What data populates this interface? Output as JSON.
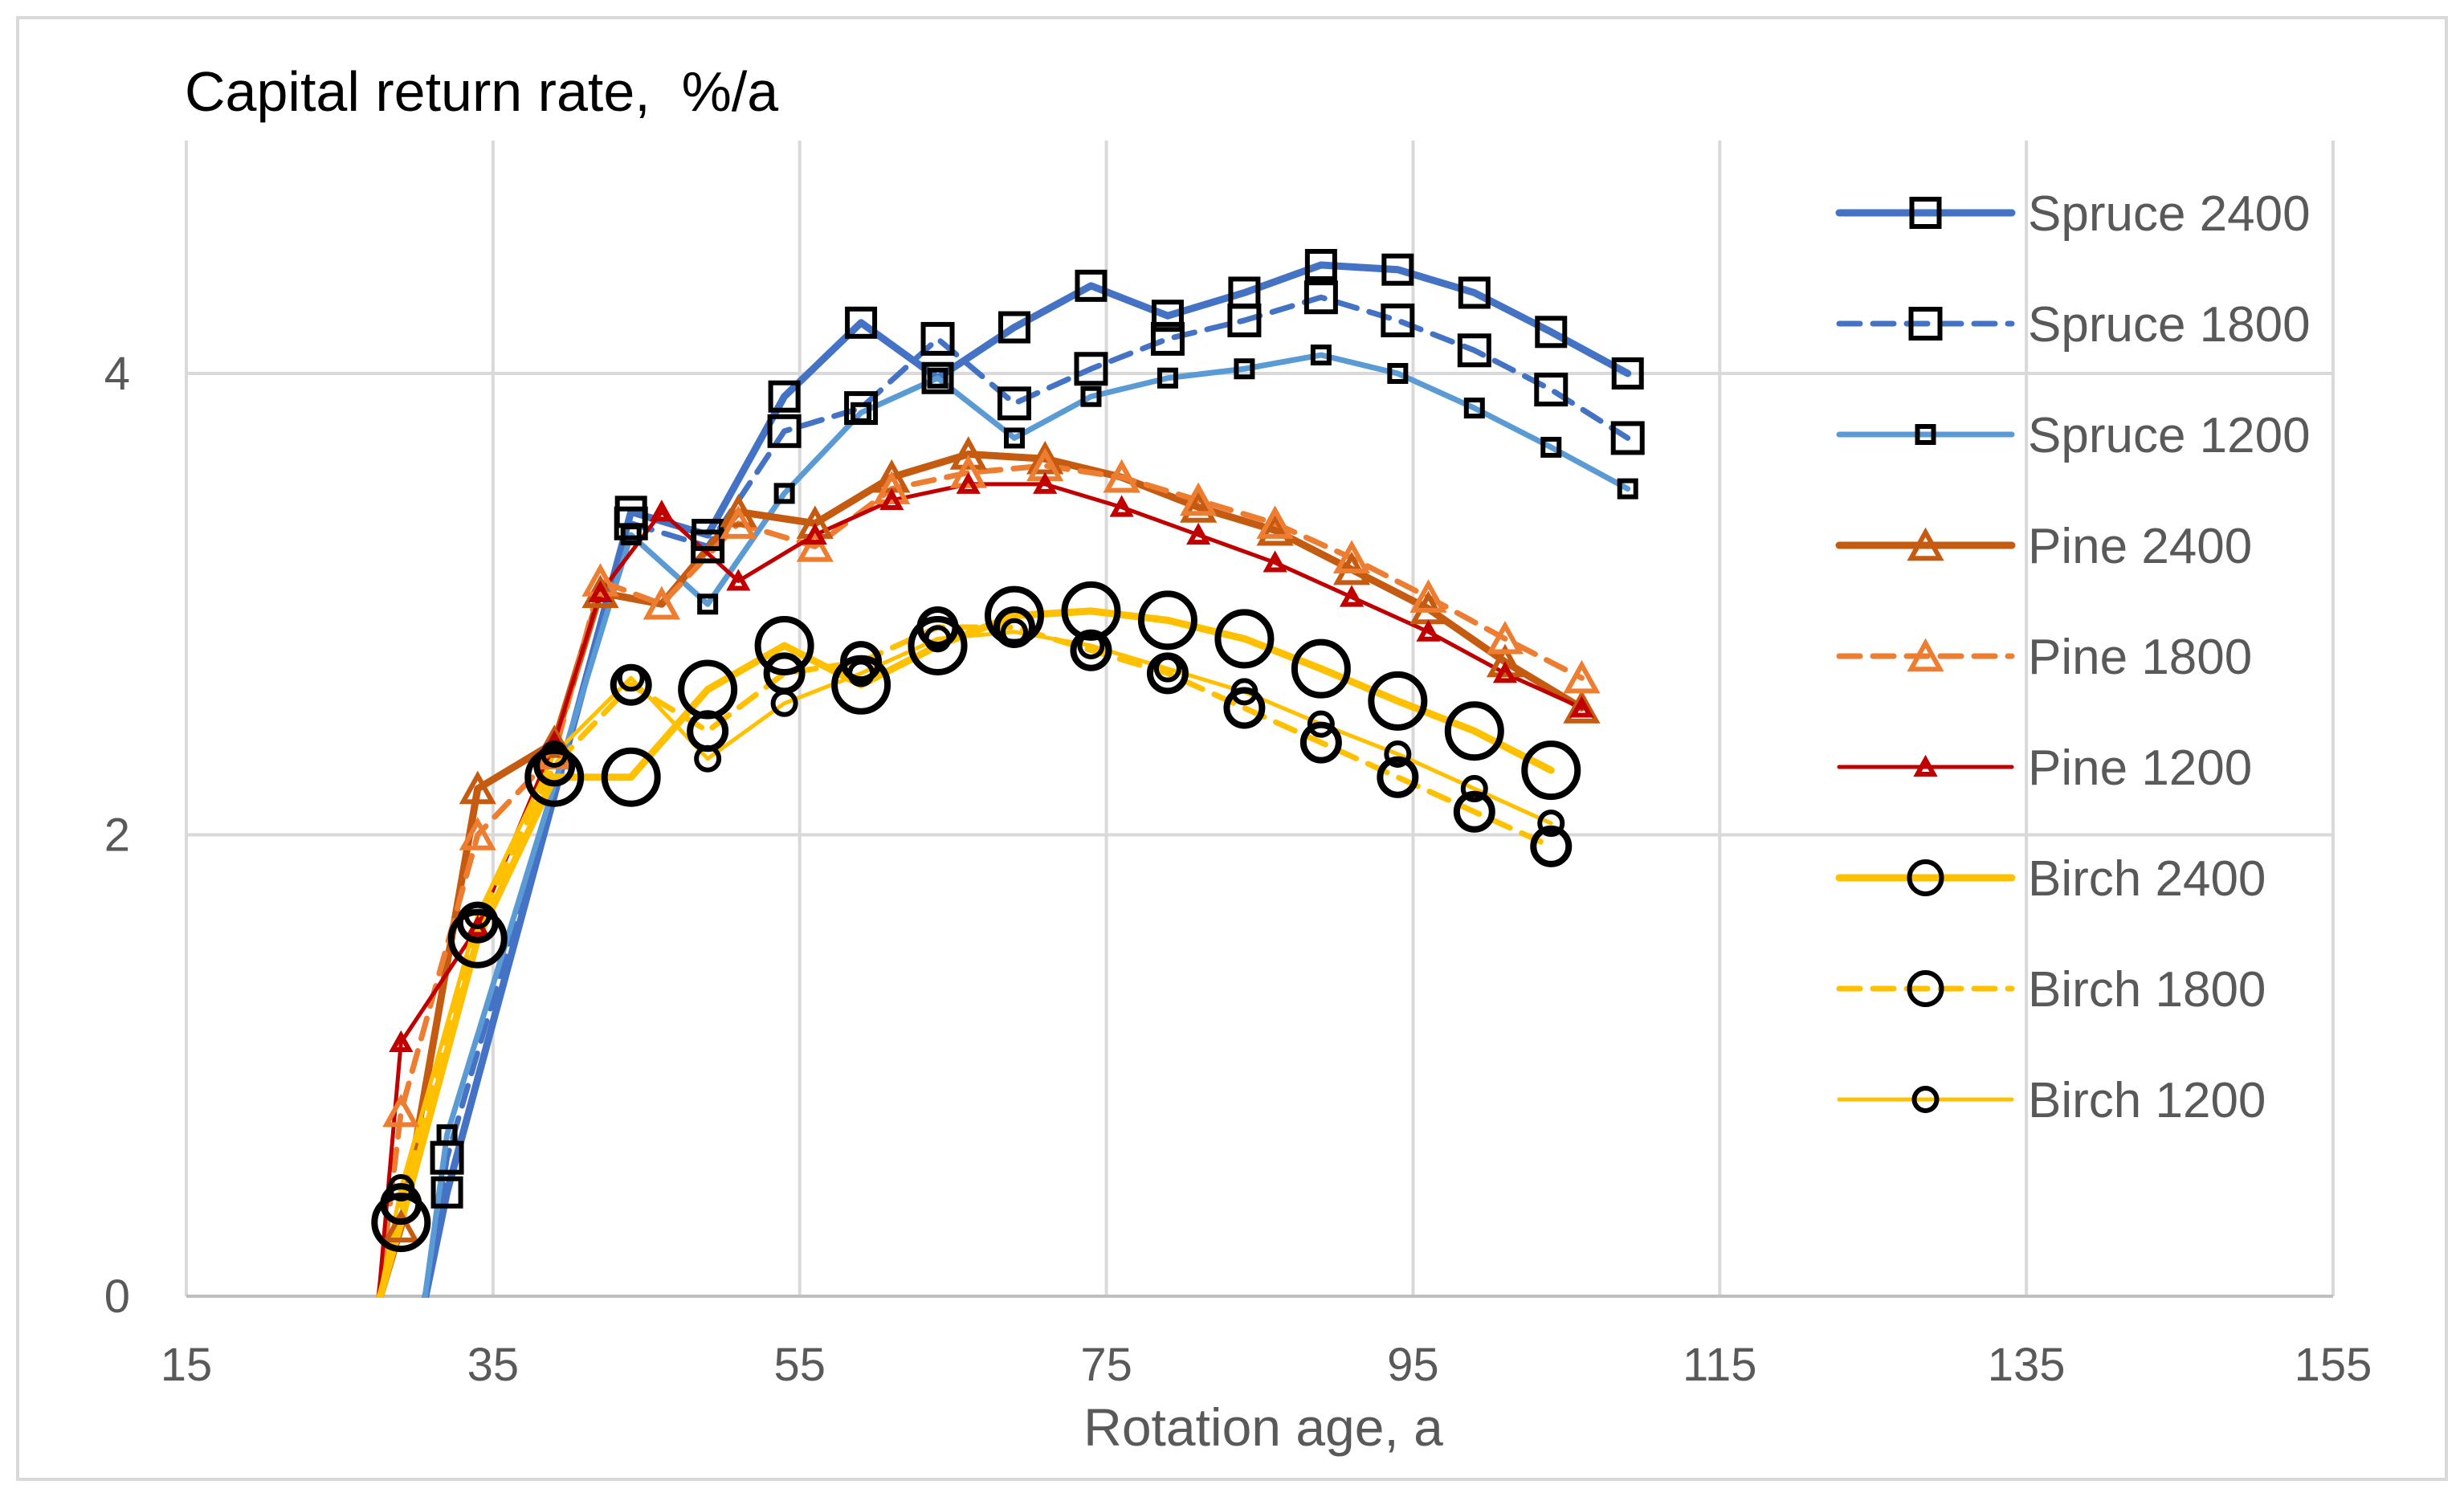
{
  "chart_data": {
    "type": "line",
    "title": "Capital return rate,  %/a",
    "xlabel": "Rotation age, a",
    "ylabel": "",
    "xlim": [
      15,
      155
    ],
    "ylim": [
      0,
      5
    ],
    "xticks": [
      15,
      35,
      55,
      75,
      95,
      115,
      135,
      155
    ],
    "yticks": [
      0,
      2,
      4
    ],
    "grid": true,
    "legend_position": "right",
    "series": [
      {
        "name": "Spruce 2400",
        "color": "#4472C4",
        "dash": "solid",
        "width": 9,
        "marker": "square",
        "marker_size": 34,
        "x": [
          32,
          44,
          49,
          54,
          59,
          64,
          69,
          74,
          79,
          84,
          89,
          94,
          99,
          104,
          109
        ],
        "y": [
          0.45,
          3.4,
          3.3,
          3.9,
          4.22,
          3.98,
          4.2,
          4.38,
          4.25,
          4.35,
          4.47,
          4.45,
          4.35,
          4.18,
          4.0
        ]
      },
      {
        "name": "Spruce 1800",
        "color": "#4472C4",
        "dash": "dashed",
        "width": 7,
        "marker": "square",
        "marker_size": 36,
        "x": [
          32,
          44,
          49,
          54,
          59,
          64,
          69,
          74,
          79,
          84,
          89,
          94,
          99,
          104,
          109
        ],
        "y": [
          0.6,
          3.35,
          3.25,
          3.75,
          3.85,
          4.15,
          3.87,
          4.02,
          4.15,
          4.23,
          4.33,
          4.23,
          4.1,
          3.93,
          3.72
        ]
      },
      {
        "name": "Spruce 1200",
        "color": "#5B9BD5",
        "dash": "solid",
        "width": 7,
        "marker": "square",
        "marker_size": 20,
        "x": [
          32,
          44,
          49,
          54,
          59,
          64,
          69,
          74,
          79,
          84,
          89,
          94,
          99,
          104,
          109
        ],
        "y": [
          0.7,
          3.3,
          3.0,
          3.48,
          3.83,
          3.98,
          3.72,
          3.9,
          3.98,
          4.02,
          4.08,
          4.0,
          3.85,
          3.68,
          3.5
        ]
      },
      {
        "name": "Pine 2400",
        "color": "#C55A11",
        "dash": "solid",
        "width": 9,
        "marker": "triangle",
        "marker_size": 36,
        "x": [
          29,
          34,
          39,
          42,
          46,
          51,
          56,
          61,
          66,
          71,
          76,
          81,
          86,
          91,
          96,
          101,
          106
        ],
        "y": [
          0.3,
          2.2,
          2.4,
          3.05,
          3.0,
          3.4,
          3.35,
          3.55,
          3.65,
          3.63,
          3.55,
          3.42,
          3.32,
          3.15,
          2.98,
          2.75,
          2.55
        ]
      },
      {
        "name": "Pine 1800",
        "color": "#ED7D31",
        "dash": "dashed",
        "width": 7,
        "marker": "triangle",
        "marker_size": 36,
        "x": [
          29,
          34,
          39,
          42,
          46,
          51,
          56,
          61,
          66,
          71,
          76,
          81,
          86,
          91,
          96,
          101,
          106
        ],
        "y": [
          0.8,
          2.0,
          2.35,
          3.1,
          3.0,
          3.35,
          3.25,
          3.5,
          3.57,
          3.6,
          3.55,
          3.45,
          3.35,
          3.2,
          3.03,
          2.85,
          2.68
        ]
      },
      {
        "name": "Pine 1200",
        "color": "#C00000",
        "dash": "solid",
        "width": 5,
        "marker": "triangle",
        "marker_size": 20,
        "x": [
          29,
          34,
          39,
          42,
          46,
          51,
          56,
          61,
          66,
          71,
          76,
          81,
          86,
          91,
          96,
          101,
          106
        ],
        "y": [
          1.1,
          1.6,
          2.4,
          3.05,
          3.4,
          3.1,
          3.3,
          3.45,
          3.52,
          3.52,
          3.42,
          3.3,
          3.18,
          3.03,
          2.88,
          2.7,
          2.55
        ]
      },
      {
        "name": "Birch 2400",
        "color": "#FFC000",
        "dash": "solid",
        "width": 9,
        "marker": "circle",
        "marker_size": 66,
        "x": [
          29,
          34,
          39,
          44,
          49,
          54,
          59,
          64,
          69,
          74,
          79,
          84,
          89,
          94,
          99,
          104
        ],
        "y": [
          0.32,
          1.55,
          2.25,
          2.25,
          2.63,
          2.82,
          2.65,
          2.82,
          2.95,
          2.97,
          2.93,
          2.85,
          2.72,
          2.58,
          2.45,
          2.28
        ]
      },
      {
        "name": "Birch 1800",
        "color": "#FFC000",
        "dash": "dashed",
        "width": 7,
        "marker": "circle",
        "marker_size": 44,
        "x": [
          29,
          34,
          39,
          44,
          49,
          54,
          59,
          64,
          69,
          74,
          79,
          84,
          89,
          94,
          99,
          104
        ],
        "y": [
          0.4,
          1.62,
          2.3,
          2.65,
          2.45,
          2.7,
          2.75,
          2.9,
          2.9,
          2.8,
          2.7,
          2.55,
          2.4,
          2.25,
          2.1,
          1.95
        ]
      },
      {
        "name": "Birch 1200",
        "color": "#FFC000",
        "dash": "solid",
        "width": 5,
        "marker": "circle",
        "marker_size": 28,
        "x": [
          29,
          34,
          39,
          44,
          49,
          54,
          59,
          64,
          69,
          74,
          79,
          84,
          89,
          94,
          99,
          104
        ],
        "y": [
          0.47,
          1.65,
          2.35,
          2.68,
          2.33,
          2.57,
          2.7,
          2.85,
          2.88,
          2.82,
          2.72,
          2.62,
          2.48,
          2.35,
          2.2,
          2.05
        ]
      }
    ]
  }
}
